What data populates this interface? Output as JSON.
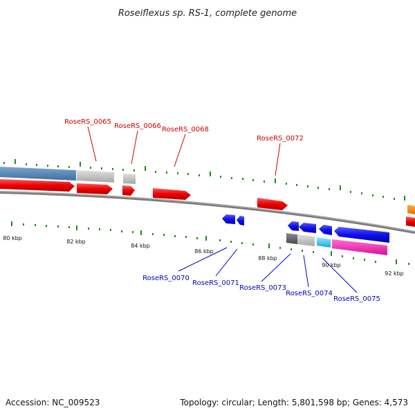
{
  "title": "Roseiflexus sp. RS-1, complete genome",
  "footer": {
    "accession": "Accession: NC_009523",
    "summary": "Topology: circular; Length: 5,801,598 bp; Genes: 4,573"
  },
  "colors": {
    "forward_label": "#cc0000",
    "reverse_label": "#0000bb",
    "backbone": "#7a7a7a",
    "tick": "#1a8a1a"
  },
  "axis": {
    "tick_labels": [
      "80 kbp",
      "82 kbp",
      "84 kbp",
      "86 kbp",
      "88 kbp",
      "90 kbp",
      "92 kbp"
    ]
  },
  "gene_labels": {
    "forward": [
      "RoseRS_0065",
      "RoseRS_0066",
      "RoseRS_0068",
      "RoseRS_0072"
    ],
    "reverse": [
      "RoseRS_0070",
      "RoseRS_0071",
      "RoseRS_0073",
      "RoseRS_0074",
      "RoseRS_0075"
    ]
  }
}
